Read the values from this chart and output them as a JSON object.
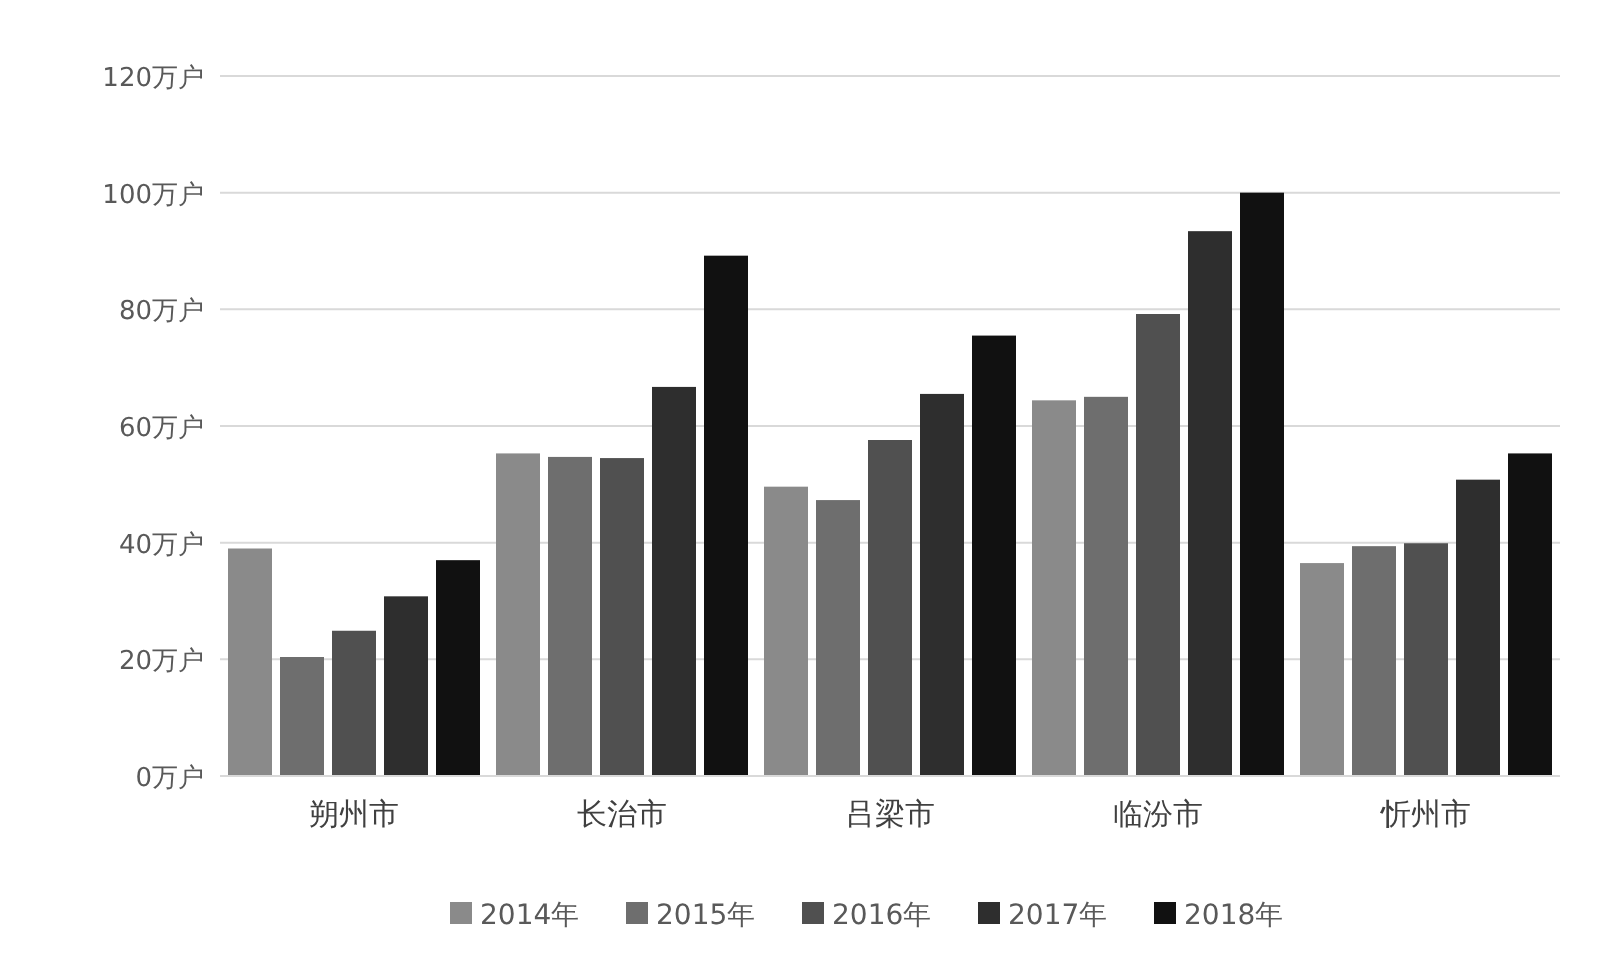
{
  "chart_data": {
    "type": "bar",
    "categories": [
      "朔州市",
      "长治市",
      "吕梁市",
      "临汾市",
      "忻州市"
    ],
    "series": [
      {
        "name": "2014年",
        "color": "#8a8a8a",
        "values": [
          39,
          55.3,
          49.6,
          64.4,
          36.5
        ]
      },
      {
        "name": "2015年",
        "color": "#6e6e6e",
        "values": [
          20.4,
          54.7,
          47.3,
          65,
          39.4
        ]
      },
      {
        "name": "2016年",
        "color": "#505050",
        "values": [
          24.9,
          54.5,
          57.6,
          79.2,
          39.9
        ]
      },
      {
        "name": "2017年",
        "color": "#2e2e2e",
        "values": [
          30.8,
          66.7,
          65.5,
          93.4,
          50.8
        ]
      },
      {
        "name": "2018年",
        "color": "#111111",
        "values": [
          37,
          89.2,
          75.5,
          100,
          55.3
        ]
      }
    ],
    "ylim": [
      0,
      120
    ],
    "yticks": [
      {
        "value": 0,
        "label": "0万户"
      },
      {
        "value": 20,
        "label": "20万户"
      },
      {
        "value": 40,
        "label": "40万户"
      },
      {
        "value": 60,
        "label": "60万户"
      },
      {
        "value": 80,
        "label": "80万户"
      },
      {
        "value": 100,
        "label": "100万户"
      },
      {
        "value": 120,
        "label": "120万户"
      }
    ],
    "grid": "y",
    "legend": "bottom"
  }
}
